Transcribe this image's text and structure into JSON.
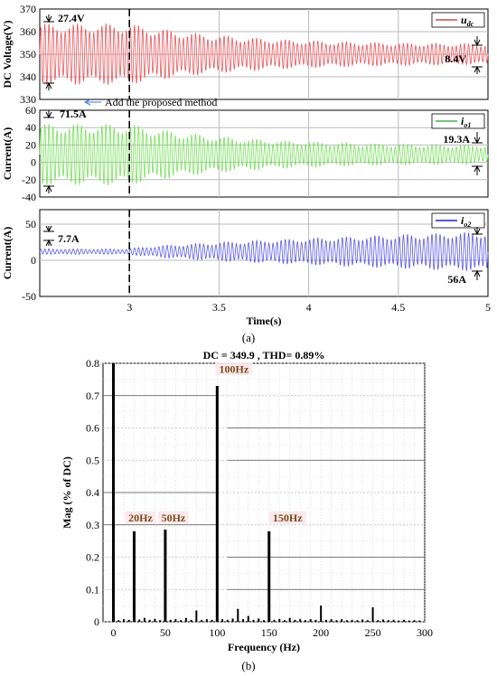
{
  "chart_data": [
    {
      "type": "line",
      "panel": "top",
      "ylabel": "DC Voltage(V)",
      "ylim": [
        330,
        370
      ],
      "yticks": [
        "330",
        "340",
        "350",
        "360",
        "370"
      ],
      "xlim": [
        2.5,
        5
      ],
      "grid": true,
      "legend": {
        "label": "u_dc",
        "text": "u",
        "sub": "dc",
        "color": "#c0504d",
        "placement": "top-right"
      },
      "series": [
        {
          "center": 350,
          "amp_start": 13.7,
          "amp_end": 4.2,
          "color": "#e8555a",
          "decay_after": 3.0,
          "grow": false
        }
      ],
      "annotations": {
        "left": "27.4V",
        "right": "8.4V"
      }
    },
    {
      "type": "line",
      "panel": "mid",
      "ylabel": "Current(A)",
      "ylim": [
        -40,
        60
      ],
      "yticks": [
        "-40",
        "-20",
        "0",
        "20",
        "40",
        "60"
      ],
      "xlim": [
        2.5,
        5
      ],
      "grid": true,
      "legend": {
        "label": "i_o1",
        "text": "i",
        "sub": "o1",
        "color": "#4caf50",
        "placement": "top-right"
      },
      "series": [
        {
          "center": 9,
          "amp_start": 35.7,
          "amp_end": 9.6,
          "color": "#77e05a",
          "decay_after": 3.0,
          "grow": false
        }
      ],
      "annotations": {
        "left": "71.5A",
        "right": "19.3A",
        "method": "Add the proposed method"
      }
    },
    {
      "type": "line",
      "panel": "bottom",
      "ylabel": "Current(A)",
      "ylim": [
        -50,
        70
      ],
      "yticks": [
        "-50",
        "0",
        "50"
      ],
      "xlabel": "Time(s)",
      "xticks": [
        "3",
        "3.5",
        "4",
        "4.5",
        "5"
      ],
      "xtick_values": [
        3,
        3.5,
        4,
        4.5,
        5
      ],
      "xlim": [
        2.5,
        5
      ],
      "grid": true,
      "legend": {
        "label": "i_o2",
        "text": "i",
        "sub": "o2",
        "color": "#2222cc",
        "placement": "top-right"
      },
      "series": [
        {
          "center": 12,
          "amp_start": 3.8,
          "amp_end": 28,
          "color": "#5a5ae8",
          "decay_after": 3.0,
          "grow": true
        }
      ],
      "annotations": {
        "left": "7.7A",
        "right": "56A"
      }
    },
    {
      "type": "bar",
      "panel": "spectrum",
      "title": "DC = 349.9 , THD= 0.89%",
      "xlabel": "Frequency (Hz)",
      "ylabel": "Mag (% of DC)",
      "xlim": [
        -10,
        300
      ],
      "ylim": [
        0,
        0.8
      ],
      "xticks": [
        "0",
        "50",
        "100",
        "150",
        "200",
        "250",
        "300"
      ],
      "xtick_values": [
        0,
        50,
        100,
        150,
        200,
        250,
        300
      ],
      "yticks": [
        "0",
        "0.1",
        "0.2",
        "0.3",
        "0.4",
        "0.5",
        "0.6",
        "0.7",
        "0.8"
      ],
      "ytick_values": [
        0,
        0.1,
        0.2,
        0.3,
        0.4,
        0.5,
        0.6,
        0.7,
        0.8
      ],
      "grid": true,
      "bars": [
        {
          "f": 0,
          "v": 0.8
        },
        {
          "f": 5,
          "v": 0.005
        },
        {
          "f": 10,
          "v": 0.008
        },
        {
          "f": 15,
          "v": 0.006
        },
        {
          "f": 20,
          "v": 0.28
        },
        {
          "f": 25,
          "v": 0.007
        },
        {
          "f": 30,
          "v": 0.012
        },
        {
          "f": 35,
          "v": 0.006
        },
        {
          "f": 40,
          "v": 0.009
        },
        {
          "f": 45,
          "v": 0.005
        },
        {
          "f": 50,
          "v": 0.285
        },
        {
          "f": 55,
          "v": 0.006
        },
        {
          "f": 60,
          "v": 0.008
        },
        {
          "f": 65,
          "v": 0.005
        },
        {
          "f": 70,
          "v": 0.012
        },
        {
          "f": 75,
          "v": 0.006
        },
        {
          "f": 80,
          "v": 0.035
        },
        {
          "f": 85,
          "v": 0.006
        },
        {
          "f": 90,
          "v": 0.008
        },
        {
          "f": 95,
          "v": 0.006
        },
        {
          "f": 100,
          "v": 0.73
        },
        {
          "f": 105,
          "v": 0.008
        },
        {
          "f": 110,
          "v": 0.006
        },
        {
          "f": 115,
          "v": 0.01
        },
        {
          "f": 120,
          "v": 0.04
        },
        {
          "f": 125,
          "v": 0.008
        },
        {
          "f": 130,
          "v": 0.018
        },
        {
          "f": 135,
          "v": 0.006
        },
        {
          "f": 140,
          "v": 0.01
        },
        {
          "f": 145,
          "v": 0.005
        },
        {
          "f": 150,
          "v": 0.28
        },
        {
          "f": 155,
          "v": 0.006
        },
        {
          "f": 160,
          "v": 0.009
        },
        {
          "f": 165,
          "v": 0.005
        },
        {
          "f": 170,
          "v": 0.012
        },
        {
          "f": 175,
          "v": 0.006
        },
        {
          "f": 180,
          "v": 0.008
        },
        {
          "f": 185,
          "v": 0.005
        },
        {
          "f": 190,
          "v": 0.008
        },
        {
          "f": 195,
          "v": 0.006
        },
        {
          "f": 200,
          "v": 0.05
        },
        {
          "f": 205,
          "v": 0.006
        },
        {
          "f": 210,
          "v": 0.008
        },
        {
          "f": 215,
          "v": 0.005
        },
        {
          "f": 220,
          "v": 0.008
        },
        {
          "f": 225,
          "v": 0.005
        },
        {
          "f": 230,
          "v": 0.006
        },
        {
          "f": 235,
          "v": 0.005
        },
        {
          "f": 240,
          "v": 0.007
        },
        {
          "f": 245,
          "v": 0.005
        },
        {
          "f": 250,
          "v": 0.045
        },
        {
          "f": 255,
          "v": 0.005
        },
        {
          "f": 260,
          "v": 0.007
        },
        {
          "f": 265,
          "v": 0.005
        },
        {
          "f": 270,
          "v": 0.006
        },
        {
          "f": 275,
          "v": 0.004
        },
        {
          "f": 280,
          "v": 0.006
        },
        {
          "f": 285,
          "v": 0.004
        },
        {
          "f": 290,
          "v": 0.005
        },
        {
          "f": 295,
          "v": 0.004
        }
      ],
      "peak_labels": [
        "20Hz",
        "50Hz",
        "100Hz",
        "150Hz"
      ],
      "peak_freqs": [
        20,
        50,
        100,
        150
      ]
    }
  ],
  "captions": {
    "a": "(a)",
    "b": "(b)"
  }
}
